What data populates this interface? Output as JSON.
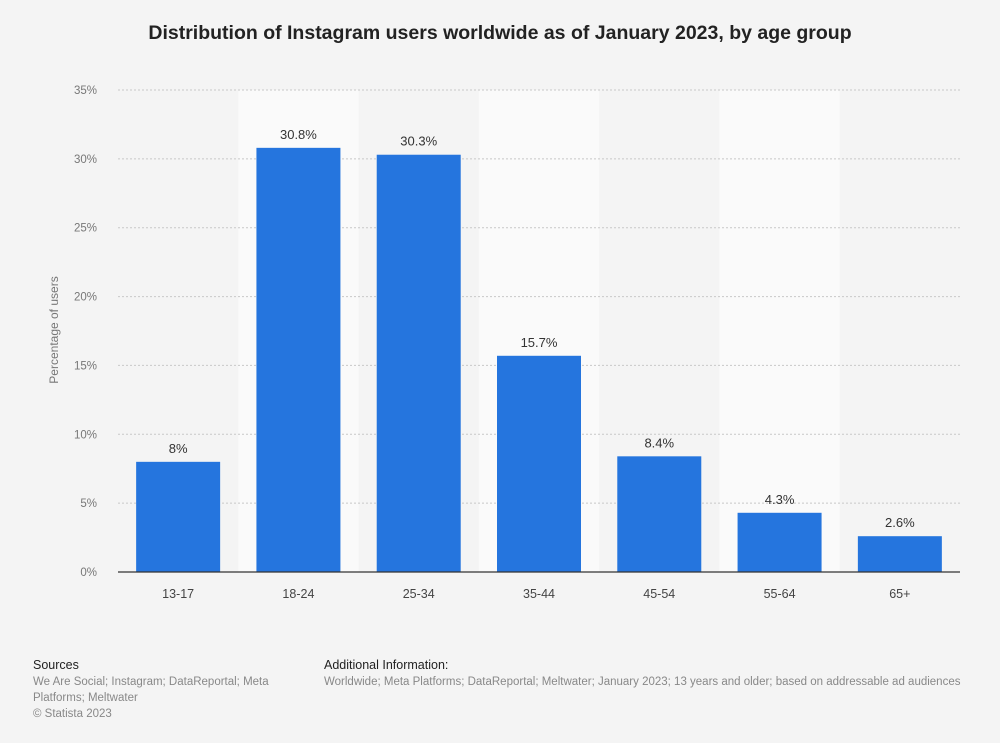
{
  "chart_data": {
    "type": "bar",
    "title": "Distribution of Instagram users worldwide as of January 2023, by age group",
    "xlabel": "",
    "ylabel": "Percentage of users",
    "categories": [
      "13-17",
      "18-24",
      "25-34",
      "35-44",
      "45-54",
      "55-64",
      "65+"
    ],
    "values": [
      8,
      30.8,
      30.3,
      15.7,
      8.4,
      4.3,
      2.6
    ],
    "value_labels": [
      "8%",
      "30.8%",
      "30.3%",
      "15.7%",
      "8.4%",
      "4.3%",
      "2.6%"
    ],
    "ylim": [
      0,
      35
    ],
    "yticks": [
      0,
      5,
      10,
      15,
      20,
      25,
      30,
      35
    ],
    "ytick_labels": [
      "0%",
      "5%",
      "10%",
      "15%",
      "20%",
      "25%",
      "30%",
      "35%"
    ],
    "grid": true,
    "bar_color": "#2575de",
    "alternate_band_color": "#fafafa"
  },
  "footer": {
    "sources_heading": "Sources",
    "sources_text": "We Are Social; Instagram; DataReportal; Meta Platforms; Meltwater",
    "copyright": "© Statista 2023",
    "additional_heading": "Additional Information:",
    "additional_text": "Worldwide; Meta Platforms; DataReportal; Meltwater; January 2023; 13 years and older; based on addressable ad audiences"
  }
}
